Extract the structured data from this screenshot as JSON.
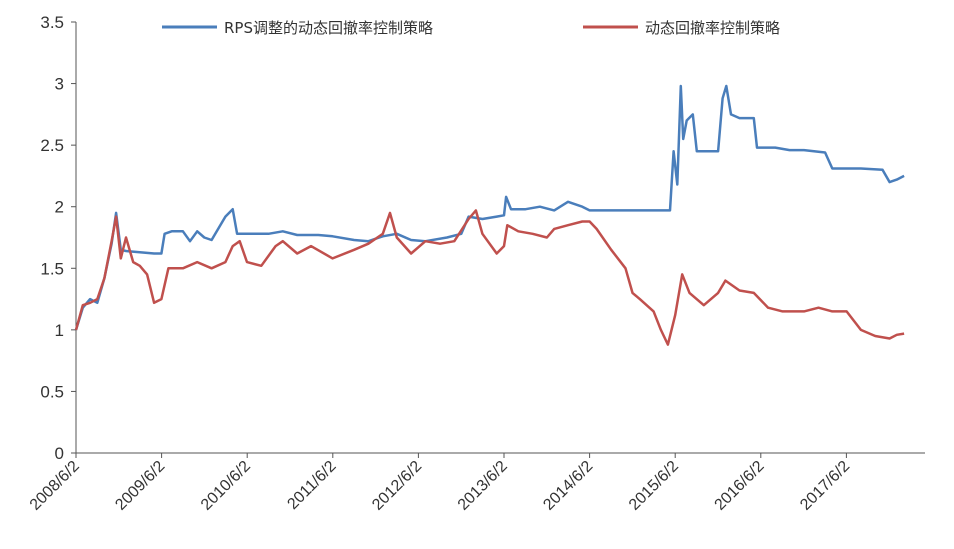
{
  "chart_data": {
    "type": "line",
    "title": "",
    "xlabel": "",
    "ylabel": "",
    "ylim": [
      0,
      3.5
    ],
    "yticks": [
      "0",
      "0.5",
      "1",
      "1.5",
      "2",
      "2.5",
      "3",
      "3.5"
    ],
    "xticks": [
      "2008/6/2",
      "2009/6/2",
      "2010/6/2",
      "2011/6/2",
      "2012/6/2",
      "2013/6/2",
      "2014/6/2",
      "2015/6/2",
      "2016/6/2",
      "2017/6/2"
    ],
    "grid": false,
    "legend_position": "top",
    "series": [
      {
        "name": "RPS调整的动态回撤率控制策略",
        "color": "#4a7ebb",
        "points": [
          [
            "2008/6/2",
            1.0
          ],
          [
            "2008/7/1",
            1.18
          ],
          [
            "2008/8/1",
            1.25
          ],
          [
            "2008/9/1",
            1.22
          ],
          [
            "2008/10/1",
            1.42
          ],
          [
            "2008/11/1",
            1.7
          ],
          [
            "2008/11/20",
            1.95
          ],
          [
            "2008/12/10",
            1.65
          ],
          [
            "2009/1/1",
            1.64
          ],
          [
            "2009/3/1",
            1.63
          ],
          [
            "2009/5/1",
            1.62
          ],
          [
            "2009/6/1",
            1.62
          ],
          [
            "2009/6/15",
            1.78
          ],
          [
            "2009/7/15",
            1.8
          ],
          [
            "2009/9/1",
            1.8
          ],
          [
            "2009/10/1",
            1.72
          ],
          [
            "2009/11/1",
            1.8
          ],
          [
            "2009/12/1",
            1.75
          ],
          [
            "2010/1/1",
            1.73
          ],
          [
            "2010/3/1",
            1.92
          ],
          [
            "2010/4/1",
            1.98
          ],
          [
            "2010/4/20",
            1.78
          ],
          [
            "2010/6/1",
            1.78
          ],
          [
            "2010/9/1",
            1.78
          ],
          [
            "2010/11/1",
            1.8
          ],
          [
            "2011/1/1",
            1.77
          ],
          [
            "2011/4/1",
            1.77
          ],
          [
            "2011/6/1",
            1.76
          ],
          [
            "2011/9/1",
            1.73
          ],
          [
            "2011/11/1",
            1.72
          ],
          [
            "2012/1/1",
            1.76
          ],
          [
            "2012/3/1",
            1.78
          ],
          [
            "2012/5/1",
            1.73
          ],
          [
            "2012/7/1",
            1.72
          ],
          [
            "2012/10/1",
            1.75
          ],
          [
            "2012/12/1",
            1.78
          ],
          [
            "2013/1/1",
            1.92
          ],
          [
            "2013/3/1",
            1.9
          ],
          [
            "2013/5/1",
            1.92
          ],
          [
            "2013/6/1",
            1.93
          ],
          [
            "2013/6/10",
            2.08
          ],
          [
            "2013/7/1",
            1.98
          ],
          [
            "2013/9/1",
            1.98
          ],
          [
            "2013/11/1",
            2.0
          ],
          [
            "2014/1/1",
            1.97
          ],
          [
            "2014/3/1",
            2.04
          ],
          [
            "2014/5/1",
            2.0
          ],
          [
            "2014/6/1",
            1.97
          ],
          [
            "2014/9/1",
            1.97
          ],
          [
            "2014/12/1",
            1.97
          ],
          [
            "2015/3/1",
            1.97
          ],
          [
            "2015/5/10",
            1.97
          ],
          [
            "2015/5/25",
            2.45
          ],
          [
            "2015/6/10",
            2.18
          ],
          [
            "2015/6/25",
            2.98
          ],
          [
            "2015/7/5",
            2.55
          ],
          [
            "2015/7/20",
            2.7
          ],
          [
            "2015/8/15",
            2.75
          ],
          [
            "2015/9/1",
            2.45
          ],
          [
            "2015/12/1",
            2.45
          ],
          [
            "2015/12/20",
            2.88
          ],
          [
            "2016/1/5",
            2.98
          ],
          [
            "2016/1/25",
            2.75
          ],
          [
            "2016/3/1",
            2.72
          ],
          [
            "2016/5/1",
            2.72
          ],
          [
            "2016/5/15",
            2.48
          ],
          [
            "2016/8/1",
            2.48
          ],
          [
            "2016/10/1",
            2.46
          ],
          [
            "2016/12/1",
            2.46
          ],
          [
            "2017/3/1",
            2.44
          ],
          [
            "2017/4/1",
            2.31
          ],
          [
            "2017/8/1",
            2.31
          ],
          [
            "2017/11/1",
            2.3
          ],
          [
            "2017/12/1",
            2.2
          ],
          [
            "2018/1/1",
            2.22
          ],
          [
            "2018/2/1",
            2.25
          ]
        ]
      },
      {
        "name": "动态回撤率控制策略",
        "color": "#c0504d",
        "points": [
          [
            "2008/6/2",
            1.0
          ],
          [
            "2008/7/1",
            1.2
          ],
          [
            "2008/8/1",
            1.22
          ],
          [
            "2008/9/1",
            1.25
          ],
          [
            "2008/10/1",
            1.42
          ],
          [
            "2008/11/1",
            1.72
          ],
          [
            "2008/11/20",
            1.92
          ],
          [
            "2008/12/10",
            1.58
          ],
          [
            "2009/1/1",
            1.75
          ],
          [
            "2009/2/1",
            1.55
          ],
          [
            "2009/3/1",
            1.52
          ],
          [
            "2009/4/1",
            1.45
          ],
          [
            "2009/5/1",
            1.22
          ],
          [
            "2009/6/1",
            1.25
          ],
          [
            "2009/7/1",
            1.5
          ],
          [
            "2009/9/1",
            1.5
          ],
          [
            "2009/11/1",
            1.55
          ],
          [
            "2010/1/1",
            1.5
          ],
          [
            "2010/3/1",
            1.55
          ],
          [
            "2010/4/1",
            1.68
          ],
          [
            "2010/5/1",
            1.72
          ],
          [
            "2010/6/1",
            1.55
          ],
          [
            "2010/8/1",
            1.52
          ],
          [
            "2010/10/1",
            1.68
          ],
          [
            "2010/11/1",
            1.72
          ],
          [
            "2011/1/1",
            1.62
          ],
          [
            "2011/3/1",
            1.68
          ],
          [
            "2011/6/1",
            1.58
          ],
          [
            "2011/9/1",
            1.65
          ],
          [
            "2011/11/1",
            1.7
          ],
          [
            "2012/1/1",
            1.78
          ],
          [
            "2012/2/1",
            1.95
          ],
          [
            "2012/3/1",
            1.75
          ],
          [
            "2012/5/1",
            1.62
          ],
          [
            "2012/7/1",
            1.72
          ],
          [
            "2012/9/1",
            1.7
          ],
          [
            "2012/11/1",
            1.72
          ],
          [
            "2013/1/1",
            1.9
          ],
          [
            "2013/2/1",
            1.97
          ],
          [
            "2013/3/1",
            1.78
          ],
          [
            "2013/5/1",
            1.62
          ],
          [
            "2013/6/1",
            1.68
          ],
          [
            "2013/6/15",
            1.85
          ],
          [
            "2013/8/1",
            1.8
          ],
          [
            "2013/10/1",
            1.78
          ],
          [
            "2013/12/1",
            1.75
          ],
          [
            "2014/1/1",
            1.82
          ],
          [
            "2014/3/1",
            1.85
          ],
          [
            "2014/5/1",
            1.88
          ],
          [
            "2014/6/1",
            1.88
          ],
          [
            "2014/7/1",
            1.82
          ],
          [
            "2014/9/1",
            1.65
          ],
          [
            "2014/11/1",
            1.5
          ],
          [
            "2014/12/1",
            1.3
          ],
          [
            "2015/1/1",
            1.25
          ],
          [
            "2015/3/1",
            1.15
          ],
          [
            "2015/4/1",
            1.0
          ],
          [
            "2015/5/1",
            0.88
          ],
          [
            "2015/6/1",
            1.12
          ],
          [
            "2015/7/1",
            1.45
          ],
          [
            "2015/8/1",
            1.3
          ],
          [
            "2015/10/1",
            1.2
          ],
          [
            "2015/12/1",
            1.3
          ],
          [
            "2016/1/1",
            1.4
          ],
          [
            "2016/3/1",
            1.32
          ],
          [
            "2016/5/1",
            1.3
          ],
          [
            "2016/7/1",
            1.18
          ],
          [
            "2016/9/1",
            1.15
          ],
          [
            "2016/12/1",
            1.15
          ],
          [
            "2017/2/1",
            1.18
          ],
          [
            "2017/4/1",
            1.15
          ],
          [
            "2017/6/1",
            1.15
          ],
          [
            "2017/8/1",
            1.0
          ],
          [
            "2017/10/1",
            0.95
          ],
          [
            "2017/12/1",
            0.93
          ],
          [
            "2018/1/1",
            0.96
          ],
          [
            "2018/2/1",
            0.97
          ]
        ]
      }
    ]
  }
}
